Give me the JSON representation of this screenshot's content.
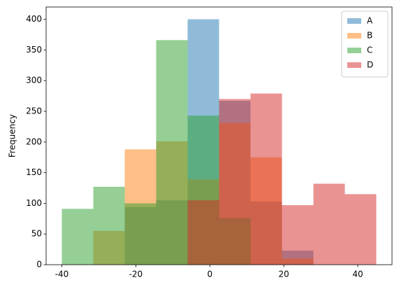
{
  "chart_data": {
    "type": "histogram",
    "ylabel": "Frequency",
    "bins": [
      -40,
      -31.5,
      -23,
      -14.5,
      -6,
      2.5,
      11,
      19.5,
      28,
      36.5,
      45
    ],
    "series": [
      {
        "name": "A",
        "color": "#1f77b4",
        "values": [
          0,
          0,
          94,
          105,
          400,
          267,
          103,
          23,
          0,
          0
        ]
      },
      {
        "name": "B",
        "color": "#ff7f0e",
        "values": [
          0,
          55,
          188,
          201,
          139,
          231,
          175,
          10,
          0,
          0
        ]
      },
      {
        "name": "C",
        "color": "#2ca02c",
        "values": [
          91,
          127,
          100,
          366,
          243,
          76,
          0,
          0,
          0,
          0
        ]
      },
      {
        "name": "D",
        "color": "#d62728",
        "values": [
          0,
          0,
          0,
          0,
          105,
          270,
          279,
          97,
          132,
          115
        ]
      }
    ],
    "alpha": 0.5,
    "xlim": [
      -44.25,
      49.25
    ],
    "xticks": [
      -40,
      -20,
      0,
      20,
      40
    ],
    "ylim": [
      0,
      420
    ],
    "yticks": [
      0,
      50,
      100,
      150,
      200,
      250,
      300,
      350,
      400
    ],
    "legend": "upper right"
  }
}
